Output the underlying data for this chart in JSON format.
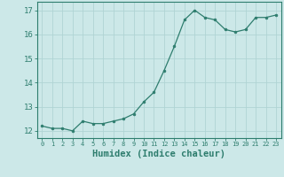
{
  "x": [
    0,
    1,
    2,
    3,
    4,
    5,
    6,
    7,
    8,
    9,
    10,
    11,
    12,
    13,
    14,
    15,
    16,
    17,
    18,
    19,
    20,
    21,
    22,
    23
  ],
  "y": [
    12.2,
    12.1,
    12.1,
    12.0,
    12.4,
    12.3,
    12.3,
    12.4,
    12.5,
    12.7,
    13.2,
    13.6,
    14.5,
    15.5,
    16.6,
    17.0,
    16.7,
    16.6,
    16.2,
    16.1,
    16.2,
    16.7,
    16.7,
    16.8
  ],
  "line_color": "#2e7d6e",
  "marker_color": "#2e7d6e",
  "bg_color": "#cce8e8",
  "grid_color": "#b0d4d4",
  "axis_color": "#2e7d6e",
  "xlabel": "Humidex (Indice chaleur)",
  "xlabel_fontsize": 7.5,
  "ylabel_ticks": [
    12,
    13,
    14,
    15,
    16,
    17
  ],
  "xlim": [
    -0.5,
    23.5
  ],
  "ylim": [
    11.7,
    17.35
  ],
  "xticks": [
    0,
    1,
    2,
    3,
    4,
    5,
    6,
    7,
    8,
    9,
    10,
    11,
    12,
    13,
    14,
    15,
    16,
    17,
    18,
    19,
    20,
    21,
    22,
    23
  ]
}
